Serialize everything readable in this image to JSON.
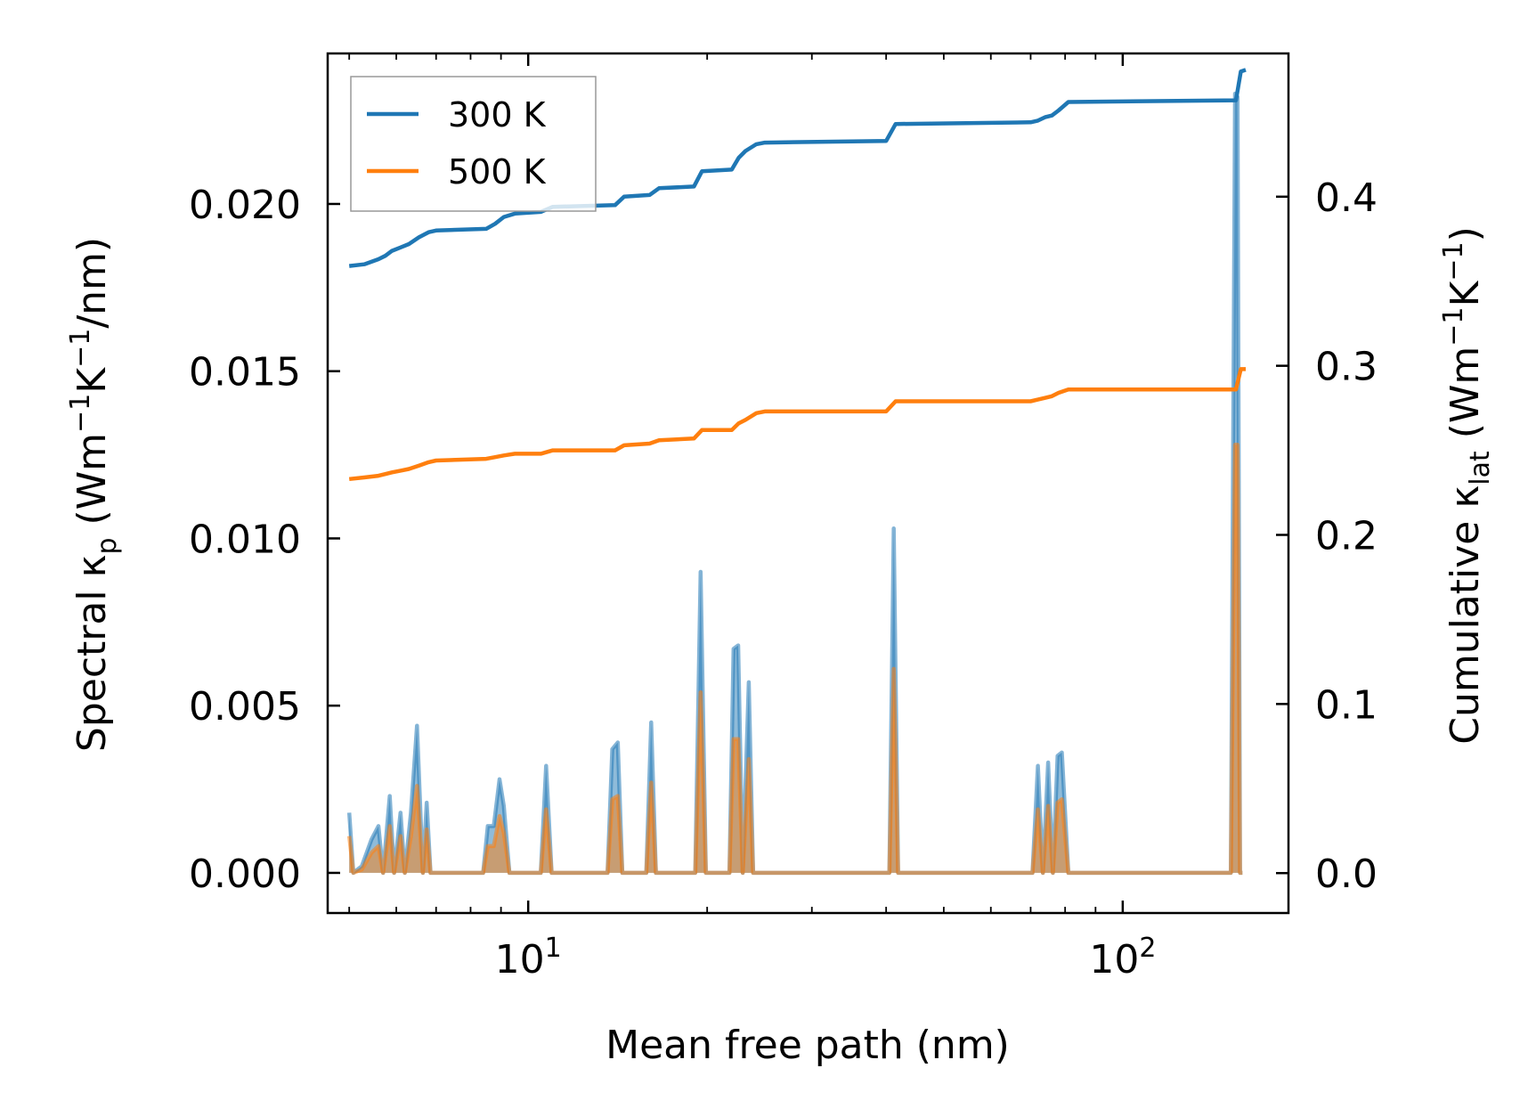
{
  "chart_data": {
    "type": "line",
    "title": "",
    "xlabel": "Mean free path (nm)",
    "xscale": "log",
    "xlim": [
      4.6,
      190
    ],
    "x_ticks": [
      {
        "value": 10,
        "base": "10",
        "exp": "1"
      },
      {
        "value": 100,
        "base": "10",
        "exp": "2"
      }
    ],
    "y_left": {
      "label_main": "Spectral κ",
      "label_sub": "p",
      "label_unit_pre": " (Wm",
      "label_sup1": "−1",
      "label_mid": "K",
      "label_sup2": "−1",
      "label_unit_post": "/nm)",
      "ylim": [
        -0.0012,
        0.0245
      ],
      "ticks": [
        0.0,
        0.005,
        0.01,
        0.015,
        0.02
      ],
      "tick_labels": [
        "0.000",
        "0.005",
        "0.010",
        "0.015",
        "0.020"
      ]
    },
    "y_right": {
      "label_main": "Cumulative κ",
      "label_sub": "lat",
      "label_unit_pre": " (Wm",
      "label_sup1": "−1",
      "label_mid": "K",
      "label_sup2": "−1",
      "label_unit_post": ")",
      "ylim": [
        -0.0236,
        0.4847
      ],
      "ticks": [
        0.0,
        0.1,
        0.2,
        0.3,
        0.4
      ],
      "tick_labels": [
        "0.0",
        "0.1",
        "0.2",
        "0.3",
        "0.4"
      ]
    },
    "legend": {
      "location": "upper-left",
      "entries": [
        {
          "label": "300 K",
          "color": "#1f77b4"
        },
        {
          "label": "500 K",
          "color": "#ff7f0e"
        }
      ]
    },
    "series": [
      {
        "name": "300 K",
        "color": "#1f77b4",
        "cumulative": {
          "x": [
            5.0,
            5.3,
            5.6,
            5.75,
            5.9,
            6.1,
            6.3,
            6.55,
            6.8,
            7.0,
            8.5,
            8.8,
            9.1,
            9.5,
            10.5,
            11.0,
            14.0,
            14.5,
            16.0,
            16.6,
            19.0,
            19.6,
            22.0,
            22.6,
            23.2,
            24.2,
            25.0,
            40.0,
            41.5,
            70.0,
            72.0,
            74.0,
            76.0,
            78.0,
            81.0,
            155.0,
            158.0,
            161.0
          ],
          "y": [
            0.359,
            0.36,
            0.363,
            0.365,
            0.368,
            0.37,
            0.372,
            0.376,
            0.379,
            0.38,
            0.381,
            0.384,
            0.388,
            0.39,
            0.391,
            0.394,
            0.395,
            0.4,
            0.401,
            0.405,
            0.406,
            0.415,
            0.416,
            0.423,
            0.427,
            0.431,
            0.432,
            0.433,
            0.443,
            0.444,
            0.445,
            0.447,
            0.448,
            0.451,
            0.456,
            0.457,
            0.474,
            0.475
          ]
        },
        "spectral": {
          "x": [
            5.0,
            5.08,
            5.25,
            5.45,
            5.6,
            5.7,
            5.85,
            5.95,
            6.1,
            6.2,
            6.35,
            6.5,
            6.65,
            6.75,
            6.85,
            6.95,
            7.05,
            8.4,
            8.55,
            8.75,
            8.95,
            9.1,
            9.3,
            9.5,
            10.5,
            10.72,
            10.95,
            13.6,
            13.85,
            14.15,
            14.4,
            15.8,
            16.1,
            16.4,
            19.1,
            19.5,
            19.9,
            21.8,
            22.15,
            22.55,
            22.95,
            23.5,
            23.9,
            24.3,
            40.5,
            41.2,
            41.9,
            70.5,
            72.0,
            73.4,
            74.9,
            76.3,
            77.7,
            79.0,
            81.0,
            83.0,
            152.0,
            154.5,
            156.0,
            157.5,
            159.0
          ],
          "y": [
            0.0018,
            0.0,
            0.0002,
            0.001,
            0.0014,
            0.0,
            0.0023,
            0.0,
            0.0018,
            0.0,
            0.0018,
            0.0044,
            0.0,
            0.0021,
            0.0,
            0.0,
            0.0,
            0.0,
            0.0014,
            0.0014,
            0.0028,
            0.002,
            0.0,
            0.0,
            0.0,
            0.0032,
            0.0,
            0.0,
            0.0037,
            0.0039,
            0.0,
            0.0,
            0.0045,
            0.0,
            0.0,
            0.009,
            0.0,
            0.0,
            0.0067,
            0.0068,
            0.0,
            0.0057,
            0.0,
            0.0,
            0.0,
            0.0103,
            0.0,
            0.0,
            0.0032,
            0.0,
            0.0033,
            0.0,
            0.0035,
            0.0036,
            0.0,
            0.0,
            0.0,
            0.0233,
            0.0232,
            0.0,
            0.0
          ]
        }
      },
      {
        "name": "500 K",
        "color": "#ff7f0e",
        "cumulative": {
          "x": [
            5.0,
            5.3,
            5.6,
            5.75,
            5.9,
            6.1,
            6.3,
            6.55,
            6.8,
            7.0,
            8.5,
            8.8,
            9.1,
            9.5,
            10.5,
            11.0,
            14.0,
            14.5,
            16.0,
            16.6,
            19.0,
            19.6,
            22.0,
            22.6,
            23.2,
            24.2,
            25.0,
            40.0,
            41.5,
            70.0,
            72.0,
            74.0,
            76.0,
            78.0,
            81.0,
            155.0,
            158.0,
            161.0
          ],
          "y": [
            0.233,
            0.234,
            0.235,
            0.236,
            0.237,
            0.238,
            0.239,
            0.241,
            0.243,
            0.244,
            0.245,
            0.246,
            0.247,
            0.248,
            0.248,
            0.25,
            0.25,
            0.253,
            0.254,
            0.256,
            0.257,
            0.262,
            0.262,
            0.266,
            0.268,
            0.272,
            0.273,
            0.273,
            0.279,
            0.279,
            0.28,
            0.281,
            0.282,
            0.284,
            0.286,
            0.286,
            0.298,
            0.298
          ]
        },
        "spectral": {
          "x": [
            5.0,
            5.08,
            5.25,
            5.45,
            5.6,
            5.7,
            5.85,
            5.95,
            6.1,
            6.2,
            6.35,
            6.5,
            6.65,
            6.75,
            6.85,
            6.95,
            7.05,
            8.4,
            8.55,
            8.75,
            8.95,
            9.1,
            9.3,
            9.5,
            10.5,
            10.72,
            10.95,
            13.6,
            13.85,
            14.15,
            14.4,
            15.8,
            16.1,
            16.4,
            19.1,
            19.5,
            19.9,
            21.8,
            22.15,
            22.55,
            22.95,
            23.5,
            23.9,
            24.3,
            40.5,
            41.2,
            41.9,
            70.5,
            72.0,
            73.4,
            74.9,
            76.3,
            77.7,
            79.0,
            81.0,
            83.0,
            152.0,
            154.5,
            156.0,
            157.5,
            159.0
          ],
          "y": [
            0.0011,
            0.0,
            0.0001,
            0.0006,
            0.0008,
            0.0,
            0.0014,
            0.0,
            0.0011,
            0.0,
            0.0011,
            0.0026,
            0.0,
            0.0013,
            0.0,
            0.0,
            0.0,
            0.0,
            0.0008,
            0.0008,
            0.0017,
            0.0012,
            0.0,
            0.0,
            0.0,
            0.0019,
            0.0,
            0.0,
            0.0022,
            0.0023,
            0.0,
            0.0,
            0.0027,
            0.0,
            0.0,
            0.0054,
            0.0,
            0.0,
            0.004,
            0.004,
            0.0,
            0.0034,
            0.0,
            0.0,
            0.0,
            0.0061,
            0.0,
            0.0,
            0.0019,
            0.0,
            0.002,
            0.0,
            0.0021,
            0.0022,
            0.0,
            0.0,
            0.0,
            0.0128,
            0.0128,
            0.0,
            0.0
          ]
        }
      }
    ]
  }
}
